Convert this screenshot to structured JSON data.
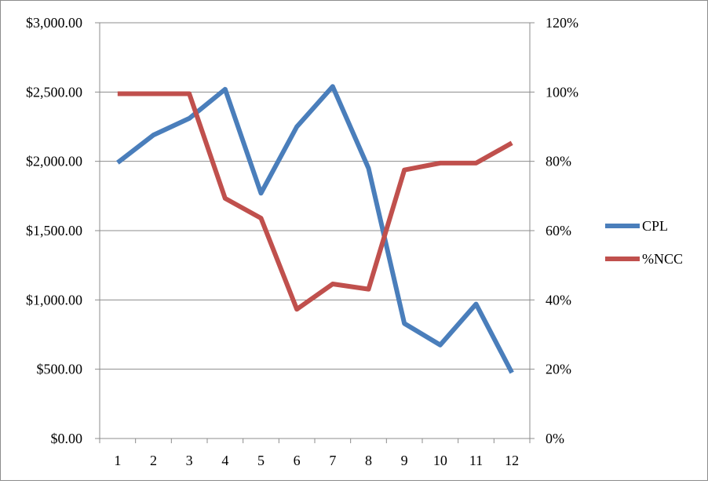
{
  "chart_data": {
    "type": "line",
    "x": [
      "1",
      "2",
      "3",
      "4",
      "5",
      "6",
      "7",
      "8",
      "9",
      "10",
      "11",
      "12"
    ],
    "y_left": {
      "range": [
        0,
        3000
      ],
      "ticks": [
        0,
        500,
        1000,
        1500,
        2000,
        2500,
        3000
      ],
      "tick_labels": [
        "$0.00",
        "$500.00",
        "$1,000.00",
        "$1,500.00",
        "$2,000.00",
        "$2,500.00",
        "$3,000.00"
      ]
    },
    "y_right": {
      "range": [
        0,
        120
      ],
      "ticks": [
        0,
        20,
        40,
        60,
        80,
        100,
        120
      ],
      "tick_labels": [
        "0%",
        "20%",
        "40%",
        "60%",
        "80%",
        "100%",
        "120%"
      ]
    },
    "series": [
      {
        "name": "CPL",
        "axis": "left",
        "color": "#4a7ebb",
        "values": [
          1990,
          2190,
          2310,
          2520,
          1770,
          2250,
          2540,
          1950,
          830,
          675,
          970,
          475
        ]
      },
      {
        "name": "%NCC",
        "axis": "right",
        "color": "#c0504d",
        "values": [
          99.5,
          99.5,
          99.5,
          69.3,
          63.6,
          37.3,
          44.6,
          43.1,
          77.5,
          79.5,
          79.5,
          85.3
        ]
      }
    ],
    "grid": true,
    "legend": "right"
  }
}
